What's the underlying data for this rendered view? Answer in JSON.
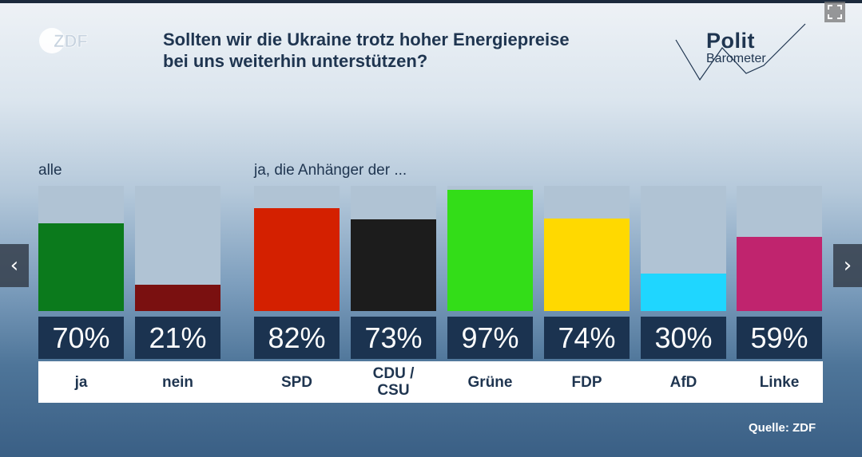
{
  "header": {
    "logo_text": "ZDF",
    "title_line1": "Sollten wir die Ukraine trotz hoher Energiepreise",
    "title_line2": "bei uns weiterhin unterstützen?",
    "brand_polit": "Polit",
    "brand_barometer": "Barometer"
  },
  "groups": {
    "all_label": "alle",
    "parties_label": "ja, die Anhänger der ..."
  },
  "chart_data": {
    "type": "bar",
    "title": "Sollten wir die Ukraine trotz hoher Energiepreise bei uns weiterhin unterstützen?",
    "categories": [
      "ja",
      "nein",
      "SPD",
      "CDU /\nCSU",
      "Grüne",
      "FDP",
      "AfD",
      "Linke"
    ],
    "values": [
      70,
      21,
      82,
      73,
      97,
      74,
      30,
      59
    ],
    "value_labels": [
      "70%",
      "21%",
      "82%",
      "73%",
      "97%",
      "74%",
      "30%",
      "59%"
    ],
    "colors": [
      "#0b7a1c",
      "#7a1010",
      "#d42000",
      "#1c1c1c",
      "#33dd18",
      "#ffd900",
      "#1fd6ff",
      "#c0246e"
    ],
    "ylim": [
      0,
      100
    ],
    "unit": "%"
  },
  "footer": {
    "source": "Quelle: ZDF"
  },
  "controls": {
    "prev_glyph": "‹",
    "next_glyph": "›"
  }
}
